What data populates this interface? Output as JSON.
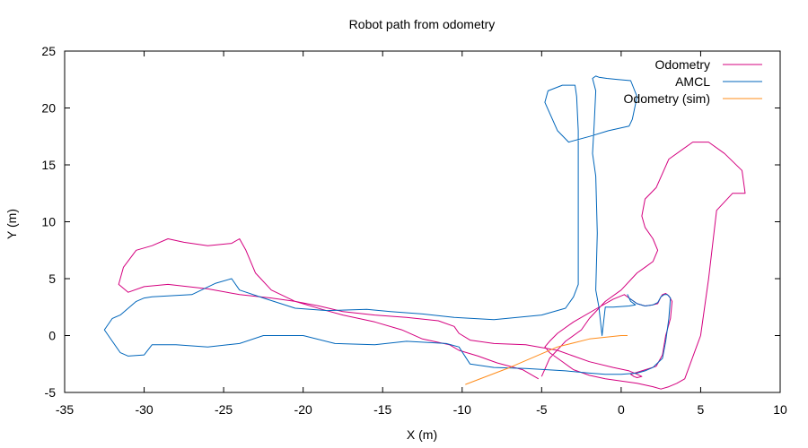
{
  "chart_data": {
    "type": "line",
    "title": "Robot path from odometry",
    "xlabel": "X (m)",
    "ylabel": "Y (m)",
    "xlim": [
      -35,
      10
    ],
    "ylim": [
      -5,
      25
    ],
    "xticks": [
      "-35",
      "-30",
      "-25",
      "-20",
      "-15",
      "-10",
      "-5",
      "0",
      "5",
      "10"
    ],
    "yticks": [
      "-5",
      "0",
      "5",
      "10",
      "15",
      "20",
      "25"
    ],
    "grid": false,
    "legend_position": "top-right",
    "series": [
      {
        "name": "Odometry",
        "color": "#d4007f",
        "x": [
          -5.2,
          -6.2,
          -7.8,
          -9.0,
          -10.2,
          -10.8,
          -12.5,
          -13.8,
          -15.5,
          -17.5,
          -18.8,
          -20.5,
          -22.0,
          -23.0,
          -23.6,
          -24.0,
          -24.5,
          -26.0,
          -27.5,
          -28.5,
          -29.5,
          -30.5,
          -31.3,
          -31.6,
          -31.0,
          -30.0,
          -28.5,
          -26.0,
          -24.0,
          -22.0,
          -20.5,
          -19.0,
          -17.5,
          -15.5,
          -13.5,
          -11.5,
          -10.5,
          -10.2,
          -9.5,
          -8.0,
          -6.0,
          -4.0,
          -3.0,
          -2.0,
          -0.5,
          0.5,
          1.0,
          1.3,
          1.0,
          0.8,
          0.6,
          1.3,
          2.2,
          2.6,
          2.8,
          3.1,
          3.2,
          3.0,
          2.8,
          2.6,
          2.5,
          2.3,
          2.0,
          1.5,
          1.0,
          0.6,
          0.2,
          -0.5,
          -1.5,
          -3.0,
          -4.0,
          -4.5,
          -4.8,
          -4.5,
          -3.8,
          -3.0,
          -2.0,
          -1.0,
          0.0,
          1.0,
          2.0,
          2.5,
          3.0,
          3.5,
          4.0,
          5.0,
          5.5,
          6.0,
          7.0,
          7.8,
          7.6,
          6.5,
          5.5,
          4.5,
          3.0,
          2.2,
          1.5,
          1.3,
          1.5,
          2.0,
          2.3,
          2.0,
          1.5,
          1.0,
          0.0,
          -1.0,
          -2.0,
          -2.5,
          -3.5,
          -4.5,
          -5.0
        ],
        "y": [
          -3.8,
          -3.0,
          -2.4,
          -1.8,
          -1.3,
          -0.8,
          -0.3,
          0.5,
          1.2,
          1.8,
          2.3,
          3.0,
          4.0,
          5.5,
          7.5,
          8.5,
          8.1,
          7.9,
          8.2,
          8.5,
          7.9,
          7.5,
          6.0,
          4.5,
          3.8,
          4.3,
          4.5,
          4.1,
          3.6,
          3.3,
          3.0,
          2.6,
          2.1,
          1.8,
          1.6,
          1.3,
          0.8,
          0.2,
          -0.4,
          -0.7,
          -0.8,
          -1.3,
          -1.8,
          -2.3,
          -2.8,
          -3.1,
          -3.4,
          -3.6,
          -3.7,
          -3.6,
          -3.4,
          -3.1,
          -2.7,
          -1.7,
          0.0,
          1.5,
          3.0,
          3.5,
          3.7,
          3.6,
          3.4,
          2.8,
          2.7,
          2.6,
          2.8,
          3.2,
          3.6,
          3.2,
          2.4,
          1.2,
          0.2,
          -0.5,
          -1.0,
          -1.5,
          -2.2,
          -3.0,
          -3.5,
          -3.8,
          -4.0,
          -4.2,
          -4.5,
          -4.7,
          -4.5,
          -4.2,
          -3.8,
          0.0,
          5.0,
          11.0,
          12.5,
          12.5,
          14.5,
          16.0,
          17.0,
          17.0,
          15.5,
          13.0,
          12.0,
          10.5,
          9.5,
          8.5,
          7.5,
          6.5,
          6.0,
          5.5,
          4.0,
          3.0,
          1.5,
          0.5,
          -0.5,
          -2.0,
          -3.6
        ]
      },
      {
        "name": "AMCL",
        "color": "#0066bb",
        "x": [
          -31.5,
          -31.0,
          -30.0,
          -29.5,
          -28.0,
          -26.0,
          -24.0,
          -22.5,
          -20.0,
          -18.0,
          -15.5,
          -13.5,
          -11.0,
          -10.2,
          -9.5,
          -8.0,
          -6.0,
          -3.5,
          -2.0,
          -1.0,
          0.0,
          1.0,
          1.5,
          2.0,
          2.6,
          2.8,
          3.0,
          3.1,
          2.9,
          2.7,
          2.5,
          2.3,
          2.0,
          1.5,
          1.0,
          0.5,
          0.4,
          0.6,
          0.9,
          0.5,
          -0.5,
          -1.0,
          -1.2,
          -1.4,
          -1.6,
          -1.5,
          -1.6,
          -1.8,
          -1.7,
          -1.6,
          -1.8,
          -1.6,
          -1.4,
          -0.9,
          -0.2,
          0.6,
          1.0,
          0.7,
          0.5,
          -0.8,
          -2.0,
          -3.3,
          -4.0,
          -4.8,
          -4.6,
          -3.7,
          -3.0,
          -2.9,
          -2.8,
          -2.7,
          -2.7,
          -3.0,
          -3.5,
          -5.0,
          -8.0,
          -10.5,
          -12.5,
          -14.5,
          -16.0,
          -18.5,
          -20.5,
          -22.5,
          -24.0,
          -24.5,
          -25.5,
          -27.0,
          -29.5,
          -30.0,
          -30.5,
          -31.5,
          -32.0,
          -32.5,
          -32.0,
          -31.5
        ],
        "y": [
          -1.5,
          -1.8,
          -1.7,
          -0.8,
          -0.8,
          -1.0,
          -0.7,
          0.0,
          0.0,
          -0.7,
          -0.8,
          -0.5,
          -0.7,
          -1.0,
          -2.5,
          -2.8,
          -2.9,
          -3.1,
          -3.3,
          -3.4,
          -3.4,
          -3.3,
          -3.1,
          -2.8,
          -2.0,
          -0.5,
          1.5,
          3.3,
          3.6,
          3.6,
          3.4,
          2.9,
          2.7,
          2.6,
          2.8,
          3.3,
          3.6,
          3.0,
          2.7,
          2.6,
          2.5,
          2.5,
          0.0,
          2.5,
          4.0,
          9.0,
          14.0,
          16.0,
          18.5,
          21.5,
          22.6,
          22.8,
          22.7,
          22.6,
          22.5,
          22.4,
          21.0,
          19.0,
          18.4,
          18.0,
          17.5,
          17.0,
          18.0,
          20.5,
          21.5,
          22.0,
          22.0,
          22.0,
          21.0,
          18.0,
          4.5,
          3.4,
          2.4,
          1.8,
          1.4,
          1.6,
          1.9,
          2.1,
          2.3,
          2.2,
          2.4,
          3.3,
          4.0,
          5.0,
          4.6,
          3.6,
          3.4,
          3.3,
          3.0,
          1.8,
          1.5,
          0.5,
          -0.5,
          -1.5
        ]
      },
      {
        "name": "Odometry (sim)",
        "color": "#ff8c1a",
        "x": [
          -9.8,
          -7.0,
          -4.0,
          -2.0,
          0.0,
          0.4
        ],
        "y": [
          -4.3,
          -2.8,
          -1.0,
          -0.3,
          0.0,
          0.0
        ]
      }
    ]
  }
}
